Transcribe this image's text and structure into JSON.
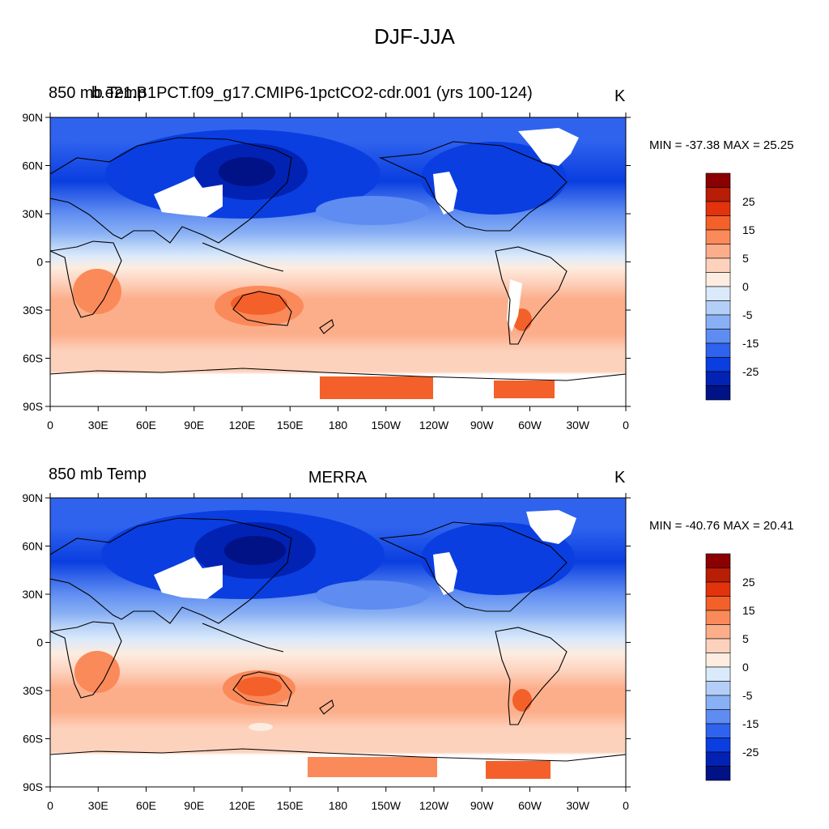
{
  "title": "DJF-JJA",
  "tick_labels": {
    "lat": [
      "90N",
      "60N",
      "30N",
      "0",
      "30S",
      "60S",
      "90S"
    ],
    "lon": [
      "0",
      "30E",
      "60E",
      "90E",
      "120E",
      "150E",
      "180",
      "150W",
      "120W",
      "90W",
      "60W",
      "30W",
      "0"
    ]
  },
  "colorbar": {
    "labels": [
      "25",
      "15",
      "5",
      "0",
      "-5",
      "-15",
      "-25"
    ],
    "colors": [
      "#8b0000",
      "#b81d05",
      "#e2330d",
      "#f4602a",
      "#fa8a5a",
      "#fcae8a",
      "#fdd2bd",
      "#fdece0",
      "#dbeafb",
      "#b4cff7",
      "#89b0f4",
      "#5f8cf1",
      "#2f63ee",
      "#0a3ee0",
      "#0222b4",
      "#001285"
    ]
  },
  "panels": [
    {
      "left_title": "850 mb Temp",
      "left_title_overlay": "b.e21.B1PCT.f09_g17.CMIP6-1pctCO2-cdr.001 (yrs 100-124)",
      "center_title": "",
      "units": "K",
      "min_max": "MIN = -37.38 MAX =  25.25"
    },
    {
      "left_title": "850 mb Temp",
      "left_title_overlay": "",
      "center_title": "MERRA",
      "units": "K",
      "min_max": "MIN = -40.76 MAX =  20.41"
    }
  ]
}
